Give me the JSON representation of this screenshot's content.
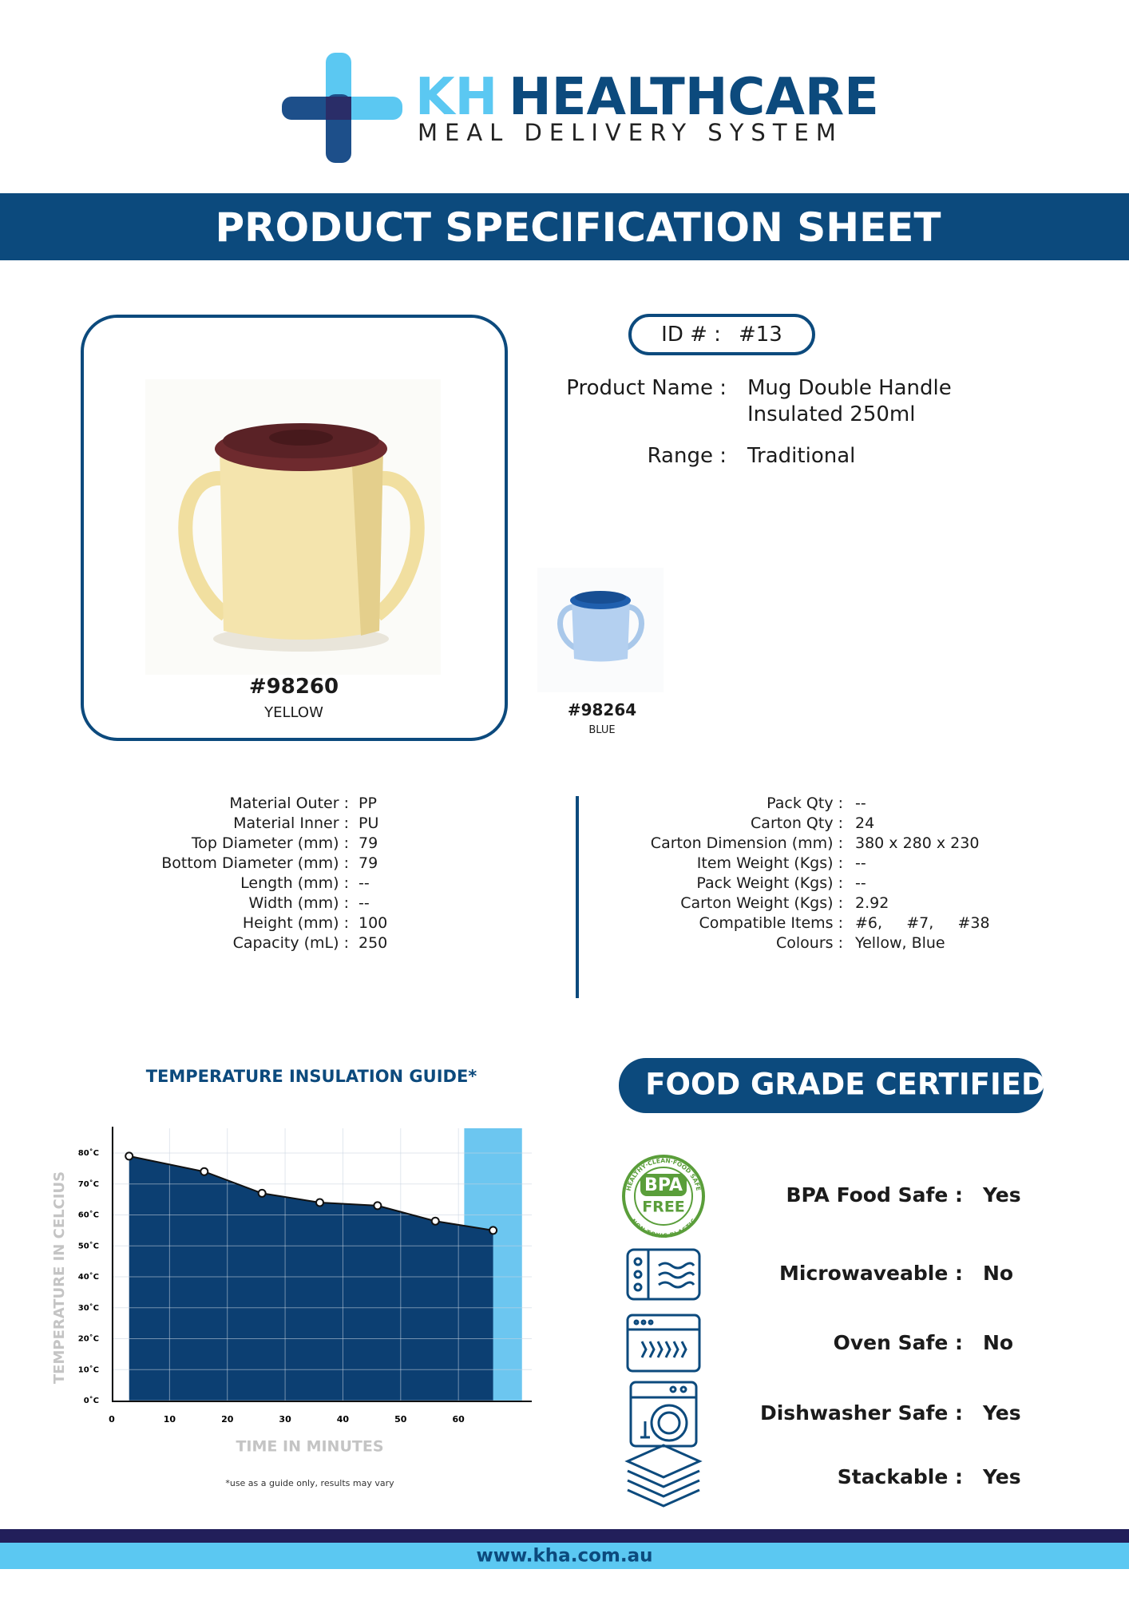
{
  "header": {
    "brand_prefix": "KH",
    "brand_name": "HEALTHCARE",
    "tagline": "MEAL DELIVERY SYSTEM"
  },
  "banner": "PRODUCT SPECIFICATION SHEET",
  "product": {
    "id_label": "ID # :",
    "id": "#13",
    "fields": [
      {
        "label": "Product Name :",
        "value": "Mug Double Handle Insulated 250ml"
      },
      {
        "label": "Range :",
        "value": "Traditional"
      }
    ],
    "variants": [
      {
        "code": "#98260",
        "colour": "YELLOW"
      },
      {
        "code": "#98264",
        "colour": "BLUE"
      }
    ]
  },
  "specs_left": [
    {
      "label": "Material Outer :",
      "value": "PP"
    },
    {
      "label": "Material Inner :",
      "value": "PU"
    },
    {
      "label": "Top Diameter (mm) :",
      "value": "79"
    },
    {
      "label": "Bottom Diameter (mm) :",
      "value": "79"
    },
    {
      "label": "Length (mm) :",
      "value": "--"
    },
    {
      "label": "Width (mm) :",
      "value": "--"
    },
    {
      "label": "Height (mm) :",
      "value": "100"
    },
    {
      "label": "Capacity (mL) :",
      "value": "250"
    }
  ],
  "specs_right": [
    {
      "label": "Pack Qty :",
      "value": "--"
    },
    {
      "label": "Carton Qty :",
      "value": "24"
    },
    {
      "label": "Carton Dimension (mm) :",
      "value": "380 x 280 x 230"
    },
    {
      "label": "Item Weight (Kgs) :",
      "value": "--"
    },
    {
      "label": "Pack Weight (Kgs) :",
      "value": "--"
    },
    {
      "label": "Carton Weight (Kgs) :",
      "value": "2.92"
    },
    {
      "label": "Compatible Items :",
      "value": "#6,     #7,     #38"
    },
    {
      "label": "Colours :",
      "value": "Yellow, Blue"
    }
  ],
  "chart_data": {
    "type": "area",
    "title": "TEMPERATURE INSULATION GUIDE*",
    "y_label": "TEMPERATURE IN CELCIUS",
    "x_label": "TIME IN MINUTES",
    "note": "*use as a guide only, results may vary",
    "x": [
      3,
      16,
      26,
      36,
      46,
      56,
      66
    ],
    "values": [
      79,
      74,
      67,
      64,
      63,
      58,
      55
    ],
    "color": "#0c3f72",
    "xlim": [
      0,
      72
    ],
    "ylim": [
      0,
      88
    ],
    "xticks": [
      0,
      10,
      20,
      30,
      40,
      50,
      60
    ],
    "yticks": [
      {
        "value": 0,
        "label": "0˚C"
      },
      {
        "value": 10,
        "label": "10˚C"
      },
      {
        "value": 20,
        "label": "20˚C"
      },
      {
        "value": 30,
        "label": "30˚C"
      },
      {
        "value": 40,
        "label": "40˚C"
      },
      {
        "value": 50,
        "label": "50˚C"
      },
      {
        "value": 60,
        "label": "60˚C"
      },
      {
        "value": 70,
        "label": "70˚C"
      },
      {
        "value": 80,
        "label": "80˚C"
      }
    ],
    "shaded_xlim": [
      61,
      71
    ],
    "shaded_color": "#6cc6f0",
    "grid": true
  },
  "certifications": {
    "title": "FOOD GRADE CERTIFIED",
    "badge": {
      "top": "BPA",
      "bottom": "FREE",
      "ring_top": "HEALTHY·CLEAN·FOOD SAFE",
      "ring_bottom": "NON TOXIC PLASTIC"
    },
    "items": [
      {
        "label": "BPA Food Safe :",
        "value": "Yes"
      },
      {
        "label": "Microwaveable :",
        "value": "No"
      },
      {
        "label": "Oven Safe :",
        "value": "No"
      },
      {
        "label": "Dishwasher Safe :",
        "value": "Yes"
      },
      {
        "label": "Stackable :",
        "value": "Yes"
      }
    ]
  },
  "footer": {
    "url": "www.kha.com.au"
  }
}
